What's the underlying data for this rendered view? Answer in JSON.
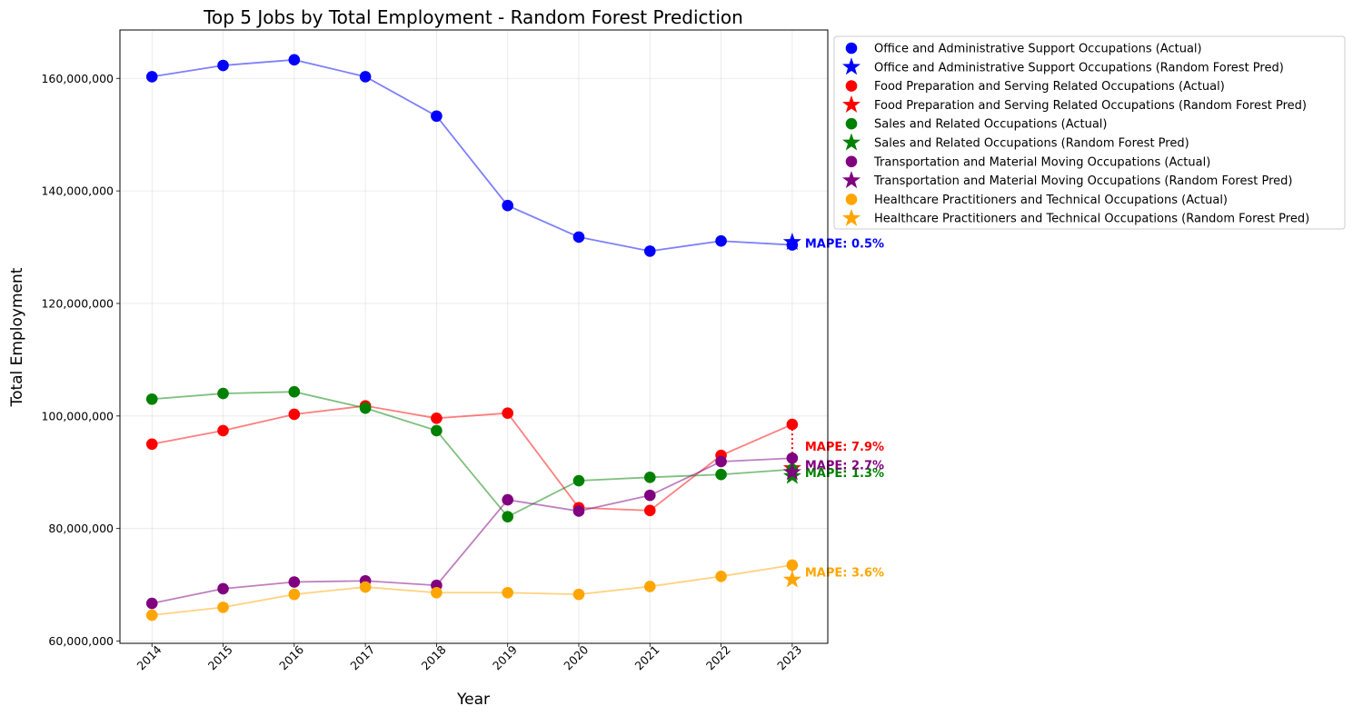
{
  "chart_data": {
    "type": "line",
    "title": "Top 5 Jobs by Total Employment - Random Forest Prediction",
    "xlabel": "Year",
    "ylabel": "Total Employment",
    "x": [
      2014,
      2015,
      2016,
      2017,
      2018,
      2019,
      2020,
      2021,
      2022,
      2023
    ],
    "xlim": [
      2013.55,
      2023.5
    ],
    "ylim": [
      59600000,
      168600000
    ],
    "yticks": [
      60000000,
      80000000,
      100000000,
      120000000,
      140000000,
      160000000
    ],
    "ytick_labels": [
      "60,000,000",
      "80,000,000",
      "100,000,000",
      "120,000,000",
      "140,000,000",
      "160,000,000"
    ],
    "grid": true,
    "legend_position": "outside upper right",
    "series": [
      {
        "name": "Office and Administrative Support Occupations",
        "color": "#0000ff",
        "actual_label": "Office and Administrative Support Occupations (Actual)",
        "pred_label": "Office and Administrative Support Occupations (Random Forest Pred)",
        "values": [
          160300000,
          162300000,
          163300000,
          160300000,
          153300000,
          137400000,
          131800000,
          129300000,
          131100000,
          130400000
        ],
        "prediction": 130900000,
        "mape": "MAPE: 0.5%"
      },
      {
        "name": "Food Preparation and Serving Related Occupations",
        "color": "#ff0000",
        "actual_label": "Food Preparation and Serving Related Occupations (Actual)",
        "pred_label": "Food Preparation and Serving Related Occupations (Random Forest Pred)",
        "values": [
          95000000,
          97400000,
          100300000,
          101800000,
          99600000,
          100500000,
          83700000,
          83200000,
          93000000,
          98500000
        ],
        "prediction": 90700000,
        "mape": "MAPE: 7.9%"
      },
      {
        "name": "Sales and Related Occupations",
        "color": "#008000",
        "actual_label": "Sales and Related Occupations (Actual)",
        "pred_label": "Sales and Related Occupations (Random Forest Pred)",
        "values": [
          103000000,
          104000000,
          104300000,
          101400000,
          97400000,
          82100000,
          88500000,
          89100000,
          89600000,
          90500000
        ],
        "prediction": 89300000,
        "mape": "MAPE: 1.3%"
      },
      {
        "name": "Transportation and Material Moving Occupations",
        "color": "#800080",
        "actual_label": "Transportation and Material Moving Occupations (Actual)",
        "pred_label": "Transportation and Material Moving Occupations (Random Forest Pred)",
        "values": [
          66700000,
          69300000,
          70500000,
          70700000,
          69900000,
          85100000,
          83100000,
          85900000,
          91900000,
          92500000
        ],
        "prediction": 90000000,
        "mape": "MAPE: 2.7%"
      },
      {
        "name": "Healthcare Practitioners and Technical Occupations",
        "color": "#ffa500",
        "actual_label": "Healthcare Practitioners and Technical Occupations (Actual)",
        "pred_label": "Healthcare Practitioners and Technical Occupations (Random Forest Pred)",
        "values": [
          64600000,
          66000000,
          68300000,
          69600000,
          68600000,
          68600000,
          68300000,
          69700000,
          71500000,
          73500000
        ],
        "prediction": 70900000,
        "mape": "MAPE: 3.6%"
      }
    ]
  }
}
